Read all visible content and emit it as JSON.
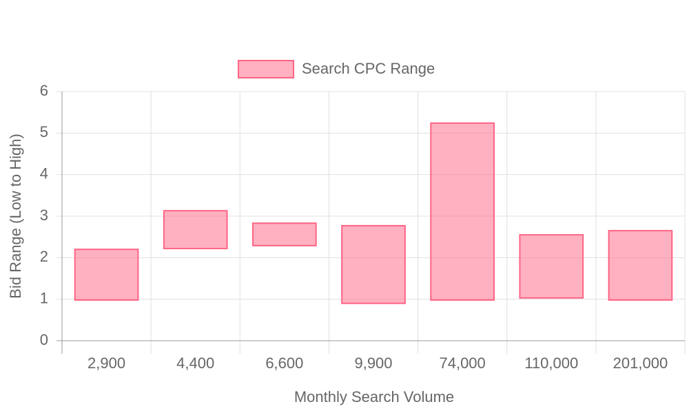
{
  "chart_data": {
    "type": "floating-bar",
    "x_label": "Monthly Search Volume",
    "y_label": "Bid Range (Low to High)",
    "categories": [
      "2,900",
      "4,400",
      "6,600",
      "9,900",
      "74,000",
      "110,000",
      "201,000"
    ],
    "series": [
      {
        "name": "Search CPC Range",
        "color": "#ff6384",
        "values": [
          [
            0.98,
            2.2
          ],
          [
            2.22,
            3.13
          ],
          [
            2.29,
            2.83
          ],
          [
            0.9,
            2.77
          ],
          [
            0.98,
            5.24
          ],
          [
            1.03,
            2.55
          ],
          [
            0.98,
            2.65
          ]
        ]
      }
    ],
    "ylim": [
      0,
      6
    ],
    "yticks": [
      0,
      1,
      2,
      3,
      4,
      5,
      6
    ],
    "grid": true,
    "legend": "top"
  }
}
